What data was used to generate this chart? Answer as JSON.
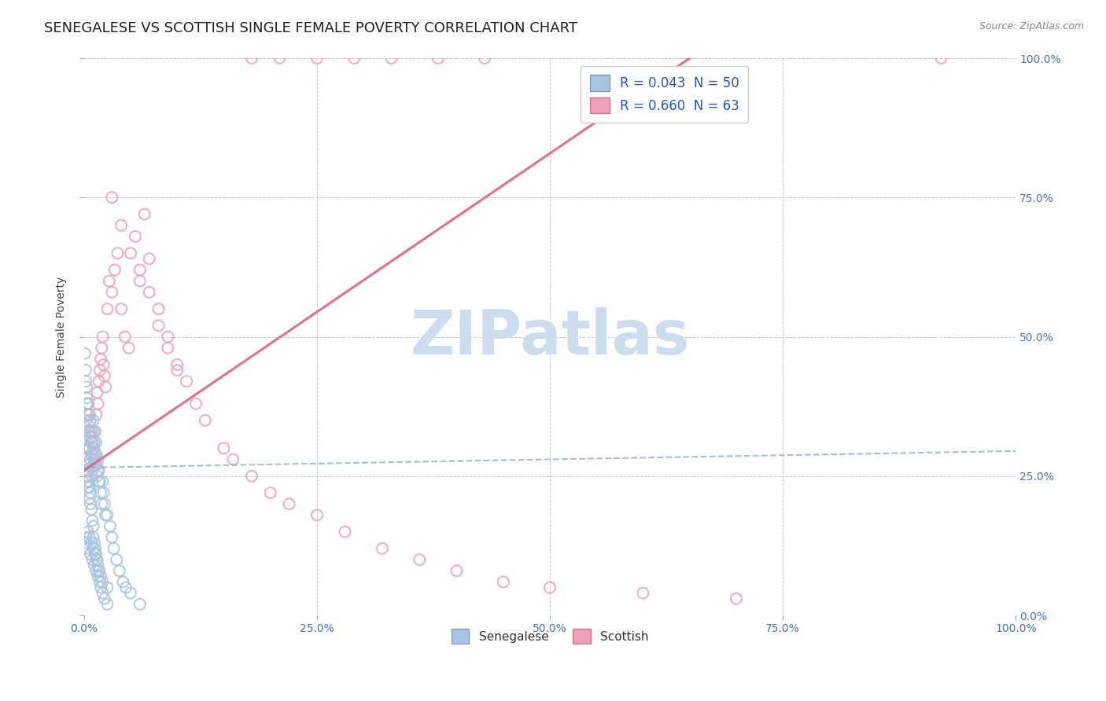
{
  "title": "SENEGALESE VS SCOTTISH SINGLE FEMALE POVERTY CORRELATION CHART",
  "source": "Source: ZipAtlas.com",
  "ylabel": "Single Female Poverty",
  "xlim": [
    0.0,
    1.0
  ],
  "ylim": [
    0.0,
    1.0
  ],
  "xtick_positions": [
    0.0,
    0.25,
    0.5,
    0.75,
    1.0
  ],
  "xtick_labels": [
    "0.0%",
    "25.0%",
    "50.0%",
    "75.0%",
    "100.0%"
  ],
  "ytick_labels": [
    "0.0%",
    "25.0%",
    "50.0%",
    "75.0%",
    "100.0%"
  ],
  "senegalese_R": 0.043,
  "senegalese_N": 50,
  "scottish_R": 0.66,
  "scottish_N": 63,
  "senegalese_color": "#a8c4e0",
  "scottish_color": "#f0a0b8",
  "senegalese_line_color": "#90acd0",
  "scottish_line_color": "#e06080",
  "watermark": "ZIPatlas",
  "watermark_color": "#ccddf0",
  "title_fontsize": 13,
  "axis_label_fontsize": 10,
  "tick_fontsize": 10,
  "legend_fontsize": 12,
  "scatter_size": 100,
  "scatter_linewidth": 1.5,
  "senegalese_x": [
    0.001,
    0.002,
    0.002,
    0.003,
    0.003,
    0.004,
    0.004,
    0.005,
    0.005,
    0.005,
    0.006,
    0.006,
    0.007,
    0.007,
    0.008,
    0.008,
    0.009,
    0.009,
    0.01,
    0.01,
    0.01,
    0.011,
    0.011,
    0.012,
    0.012,
    0.013,
    0.013,
    0.014,
    0.014,
    0.015,
    0.015,
    0.016,
    0.016,
    0.017,
    0.018,
    0.019,
    0.02,
    0.021,
    0.022,
    0.023,
    0.025,
    0.028,
    0.03,
    0.032,
    0.035,
    0.038,
    0.042,
    0.045,
    0.05,
    0.06
  ],
  "senegalese_y": [
    0.47,
    0.42,
    0.44,
    0.39,
    0.41,
    0.36,
    0.38,
    0.34,
    0.36,
    0.38,
    0.32,
    0.3,
    0.33,
    0.35,
    0.31,
    0.29,
    0.33,
    0.31,
    0.29,
    0.27,
    0.35,
    0.33,
    0.31,
    0.29,
    0.27,
    0.31,
    0.29,
    0.27,
    0.25,
    0.28,
    0.26,
    0.26,
    0.24,
    0.24,
    0.22,
    0.2,
    0.24,
    0.22,
    0.2,
    0.18,
    0.18,
    0.16,
    0.14,
    0.12,
    0.1,
    0.08,
    0.06,
    0.05,
    0.04,
    0.02
  ],
  "senegalese_extra_x": [
    0.001,
    0.001,
    0.002,
    0.002,
    0.002,
    0.003,
    0.003,
    0.003,
    0.004,
    0.004,
    0.004,
    0.005,
    0.005,
    0.006,
    0.006,
    0.007,
    0.007,
    0.008,
    0.009,
    0.01,
    0.01,
    0.011,
    0.012,
    0.013,
    0.014,
    0.015,
    0.016,
    0.018,
    0.02,
    0.025
  ],
  "senegalese_extra_y": [
    0.28,
    0.26,
    0.3,
    0.27,
    0.25,
    0.28,
    0.26,
    0.24,
    0.27,
    0.25,
    0.23,
    0.26,
    0.24,
    0.23,
    0.21,
    0.22,
    0.2,
    0.19,
    0.17,
    0.16,
    0.14,
    0.13,
    0.12,
    0.11,
    0.1,
    0.09,
    0.08,
    0.07,
    0.06,
    0.05
  ],
  "senegalese_low_x": [
    0.002,
    0.003,
    0.004,
    0.005,
    0.006,
    0.007,
    0.008,
    0.009,
    0.01,
    0.011,
    0.012,
    0.013,
    0.014,
    0.015,
    0.016,
    0.017,
    0.018,
    0.02,
    0.022,
    0.025
  ],
  "senegalese_low_y": [
    0.14,
    0.13,
    0.15,
    0.12,
    0.14,
    0.11,
    0.13,
    0.1,
    0.12,
    0.09,
    0.11,
    0.08,
    0.1,
    0.07,
    0.08,
    0.06,
    0.05,
    0.04,
    0.03,
    0.02
  ],
  "scottish_x": [
    0.002,
    0.003,
    0.004,
    0.005,
    0.006,
    0.007,
    0.008,
    0.009,
    0.01,
    0.011,
    0.012,
    0.013,
    0.014,
    0.015,
    0.016,
    0.017,
    0.018,
    0.019,
    0.02,
    0.021,
    0.022,
    0.023,
    0.025,
    0.027,
    0.03,
    0.033,
    0.036,
    0.04,
    0.044,
    0.048,
    0.055,
    0.06,
    0.065,
    0.07,
    0.08,
    0.09,
    0.1,
    0.11,
    0.12,
    0.13,
    0.15,
    0.16,
    0.18,
    0.2,
    0.22,
    0.25,
    0.28,
    0.32,
    0.36,
    0.4,
    0.45,
    0.5,
    0.6,
    0.7,
    0.03,
    0.04,
    0.05,
    0.06,
    0.07,
    0.08,
    0.09,
    0.1,
    0.92
  ],
  "scottish_y": [
    0.35,
    0.38,
    0.3,
    0.33,
    0.36,
    0.28,
    0.32,
    0.25,
    0.3,
    0.28,
    0.33,
    0.36,
    0.4,
    0.38,
    0.42,
    0.44,
    0.46,
    0.48,
    0.5,
    0.45,
    0.43,
    0.41,
    0.55,
    0.6,
    0.58,
    0.62,
    0.65,
    0.55,
    0.5,
    0.48,
    0.68,
    0.6,
    0.72,
    0.64,
    0.55,
    0.5,
    0.45,
    0.42,
    0.38,
    0.35,
    0.3,
    0.28,
    0.25,
    0.22,
    0.2,
    0.18,
    0.15,
    0.12,
    0.1,
    0.08,
    0.06,
    0.05,
    0.04,
    0.03,
    0.75,
    0.7,
    0.65,
    0.62,
    0.58,
    0.52,
    0.48,
    0.44,
    1.0
  ],
  "scottish_top_x": [
    0.18,
    0.21,
    0.25,
    0.29,
    0.33,
    0.38,
    0.43
  ],
  "scottish_top_y": [
    1.0,
    1.0,
    1.0,
    1.0,
    1.0,
    1.0,
    1.0
  ],
  "sen_line_x0": 0.0,
  "sen_line_x1": 1.0,
  "sen_line_y0": 0.265,
  "sen_line_y1": 0.295,
  "sco_line_x0": 0.0,
  "sco_line_x1": 0.65,
  "sco_line_y0": 0.26,
  "sco_line_y1": 1.0
}
